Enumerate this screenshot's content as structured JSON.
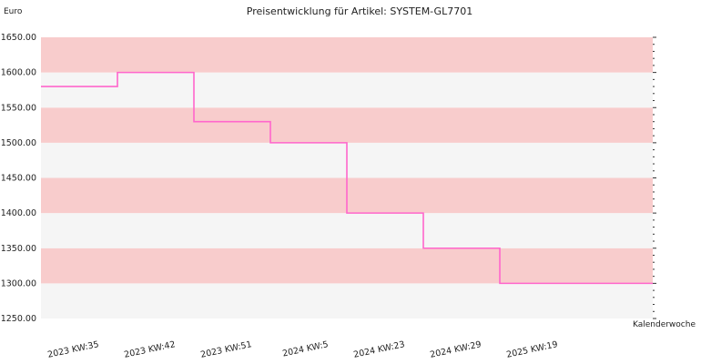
{
  "chart_data": {
    "type": "line",
    "title": "Preisentwicklung für Artikel: SYSTEM-GL7701",
    "ylabel": "Euro",
    "xlabel": "Kalenderwoche",
    "ylim": [
      1250,
      1650
    ],
    "y_ticks": [
      1250,
      1300,
      1350,
      1400,
      1450,
      1500,
      1550,
      1600,
      1650
    ],
    "y_tick_labels": [
      "1250.00",
      "1300.00",
      "1350.00",
      "1400.00",
      "1450.00",
      "1500.00",
      "1550.00",
      "1600.00",
      "1650.00"
    ],
    "categories": [
      "2023 KW:35",
      "2023 KW:42",
      "2023 KW:51",
      "2024 KW:5",
      "2024 KW:23",
      "2024 KW:29",
      "2025 KW:19"
    ],
    "series": [
      {
        "values": [
          1580,
          1600,
          1530,
          1500,
          1400,
          1350,
          1300
        ]
      }
    ],
    "step": true,
    "grid": true,
    "colors": {
      "line": "#ff66cc",
      "band_pink": "#f8cccc",
      "band_light": "#f5f5f5",
      "text": "#222222"
    }
  }
}
